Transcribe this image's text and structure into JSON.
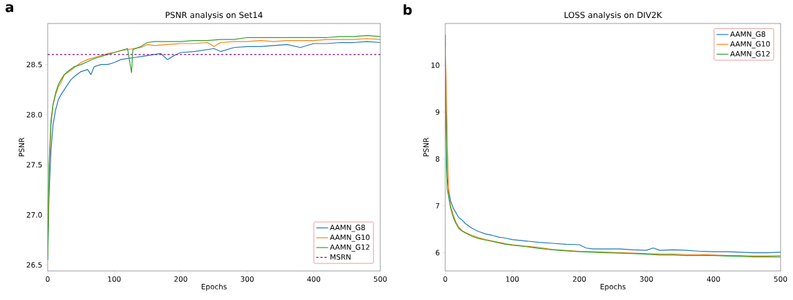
{
  "chart_data": [
    {
      "type": "line",
      "title": "PSNR analysis on Set14",
      "xlabel": "Epochs",
      "ylabel": "PSNR",
      "annotations": [
        "a"
      ],
      "xlim": [
        0,
        500
      ],
      "ylim": [
        26.44,
        28.91
      ],
      "xticks": [
        0,
        100,
        200,
        300,
        400,
        500
      ],
      "yticks": [
        26.5,
        {
          "value": 27,
          "label": "27.0"
        },
        27.5,
        {
          "value": 28,
          "label": "28.0"
        },
        28.5
      ],
      "legend": "bottom right",
      "ref_lines": [
        {
          "axis": "y",
          "value": 28.6,
          "label": "MSRN",
          "color": "#800080",
          "line_style": "dashed"
        }
      ],
      "series": [
        {
          "name": "AAMN_G8",
          "color": "#1f77b4",
          "x": [
            0,
            2,
            5,
            8,
            12,
            16,
            20,
            25,
            30,
            35,
            40,
            50,
            60,
            65,
            70,
            80,
            90,
            100,
            110,
            120,
            130,
            140,
            150,
            160,
            170,
            180,
            190,
            200,
            220,
            240,
            250,
            260,
            280,
            300,
            320,
            340,
            360,
            380,
            400,
            420,
            440,
            460,
            480,
            500
          ],
          "values": [
            26.55,
            27.2,
            27.65,
            27.9,
            28.05,
            28.15,
            28.2,
            28.25,
            28.3,
            28.35,
            28.38,
            28.43,
            28.45,
            28.4,
            28.48,
            28.5,
            28.5,
            28.52,
            28.55,
            28.56,
            28.57,
            28.58,
            28.59,
            28.6,
            28.61,
            28.55,
            28.59,
            28.62,
            28.63,
            28.65,
            28.66,
            28.63,
            28.67,
            28.68,
            28.68,
            28.69,
            28.7,
            28.67,
            28.71,
            28.71,
            28.72,
            28.72,
            28.73,
            28.72
          ]
        },
        {
          "name": "AAMN_G10",
          "color": "#ff7f0e",
          "x": [
            0,
            2,
            5,
            8,
            12,
            16,
            20,
            25,
            30,
            40,
            50,
            60,
            70,
            80,
            90,
            100,
            110,
            120,
            130,
            140,
            150,
            160,
            180,
            200,
            220,
            240,
            250,
            260,
            280,
            300,
            320,
            340,
            360,
            380,
            400,
            420,
            440,
            460,
            480,
            500
          ],
          "values": [
            26.6,
            27.4,
            27.9,
            28.1,
            28.2,
            28.28,
            28.32,
            28.4,
            28.42,
            28.47,
            28.52,
            28.55,
            28.57,
            28.59,
            28.61,
            28.62,
            28.64,
            28.65,
            28.66,
            28.67,
            28.7,
            28.69,
            28.7,
            28.71,
            28.71,
            28.72,
            28.68,
            28.72,
            28.73,
            28.73,
            28.74,
            28.73,
            28.74,
            28.74,
            28.74,
            28.75,
            28.75,
            28.75,
            28.76,
            28.75
          ]
        },
        {
          "name": "AAMN_G12",
          "color": "#2ca02c",
          "x": [
            0,
            2,
            5,
            8,
            12,
            16,
            20,
            25,
            30,
            40,
            50,
            60,
            70,
            80,
            90,
            100,
            110,
            120,
            126,
            128,
            140,
            150,
            160,
            180,
            200,
            220,
            240,
            260,
            280,
            300,
            320,
            340,
            360,
            380,
            400,
            420,
            440,
            460,
            480,
            500
          ],
          "values": [
            26.6,
            27.5,
            27.95,
            28.1,
            28.22,
            28.3,
            28.35,
            28.4,
            28.43,
            28.48,
            28.5,
            28.53,
            28.56,
            28.58,
            28.6,
            28.62,
            28.64,
            28.66,
            28.42,
            28.65,
            28.68,
            28.72,
            28.73,
            28.73,
            28.73,
            28.74,
            28.74,
            28.75,
            28.75,
            28.77,
            28.77,
            28.77,
            28.77,
            28.77,
            28.77,
            28.77,
            28.78,
            28.78,
            28.79,
            28.78
          ]
        }
      ]
    },
    {
      "type": "line",
      "title": "LOSS analysis on DIV2K",
      "xlabel": "Epochs",
      "ylabel": "PSNR",
      "annotations": [
        "b"
      ],
      "xlim": [
        0,
        500
      ],
      "ylim": [
        5.61,
        10.89
      ],
      "xticks": [
        0,
        100,
        200,
        300,
        400,
        500
      ],
      "yticks": [
        6,
        7,
        8,
        9,
        10
      ],
      "legend": "top right",
      "series": [
        {
          "name": "AAMN_G8",
          "color": "#1f77b4",
          "x": [
            0,
            1,
            2,
            3,
            5,
            8,
            12,
            16,
            20,
            25,
            30,
            40,
            50,
            60,
            70,
            80,
            90,
            100,
            120,
            140,
            160,
            180,
            200,
            210,
            220,
            240,
            260,
            280,
            300,
            310,
            320,
            340,
            360,
            380,
            400,
            420,
            440,
            460,
            480,
            500
          ],
          "values": [
            10.65,
            9.0,
            8.0,
            7.6,
            7.35,
            7.1,
            6.95,
            6.85,
            6.75,
            6.7,
            6.62,
            6.52,
            6.45,
            6.4,
            6.37,
            6.33,
            6.31,
            6.28,
            6.25,
            6.22,
            6.2,
            6.18,
            6.17,
            6.1,
            6.08,
            6.08,
            6.08,
            6.06,
            6.05,
            6.1,
            6.05,
            6.06,
            6.05,
            6.03,
            6.02,
            6.02,
            6.01,
            6.0,
            6.0,
            6.01
          ]
        },
        {
          "name": "AAMN_G10",
          "color": "#ff7f0e",
          "x": [
            0,
            5,
            8,
            12,
            16,
            20,
            25,
            30,
            40,
            50,
            60,
            70,
            80,
            90,
            100,
            120,
            140,
            160,
            180,
            200,
            220,
            240,
            260,
            280,
            300,
            320,
            340,
            360,
            380,
            400,
            420,
            440,
            460,
            480,
            500
          ],
          "values": [
            10.4,
            7.2,
            7.0,
            6.8,
            6.65,
            6.55,
            6.47,
            6.43,
            6.37,
            6.32,
            6.28,
            6.25,
            6.22,
            6.19,
            6.17,
            6.14,
            6.11,
            6.07,
            6.05,
            6.03,
            6.02,
            6.01,
            6.0,
            5.99,
            5.98,
            5.97,
            5.97,
            5.96,
            5.96,
            5.95,
            5.94,
            5.94,
            5.93,
            5.93,
            5.94
          ]
        },
        {
          "name": "AAMN_G12",
          "color": "#2ca02c",
          "x": [
            0,
            1,
            2,
            3,
            5,
            8,
            12,
            16,
            20,
            25,
            30,
            40,
            50,
            60,
            70,
            80,
            90,
            100,
            120,
            140,
            160,
            180,
            200,
            220,
            240,
            260,
            280,
            300,
            320,
            340,
            360,
            380,
            400,
            420,
            440,
            460,
            480,
            500
          ],
          "values": [
            10.2,
            8.7,
            7.8,
            7.35,
            7.2,
            6.95,
            6.75,
            6.62,
            6.52,
            6.46,
            6.42,
            6.35,
            6.3,
            6.27,
            6.24,
            6.21,
            6.18,
            6.16,
            6.13,
            6.09,
            6.06,
            6.04,
            6.02,
            6.01,
            6.0,
            5.99,
            5.98,
            5.97,
            5.95,
            5.95,
            5.94,
            5.94,
            5.94,
            5.93,
            5.92,
            5.91,
            5.91,
            5.91
          ]
        }
      ]
    }
  ]
}
